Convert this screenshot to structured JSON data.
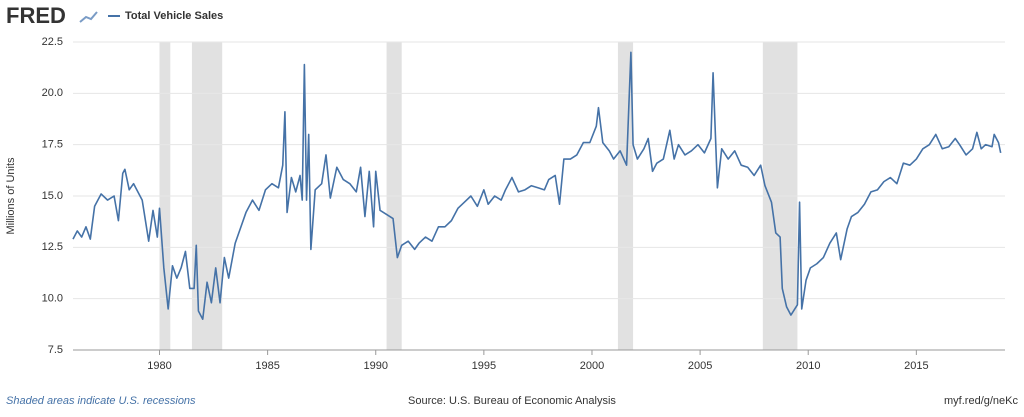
{
  "header": {
    "logo": "FRED"
  },
  "chart_data": {
    "type": "line",
    "y_label": "Millions of Units",
    "xlim": [
      1976,
      2019.1
    ],
    "xticks": [
      1980,
      1985,
      1990,
      1995,
      2000,
      2005,
      2010,
      2015
    ],
    "ylim": [
      7.5,
      22.5
    ],
    "yticks": [
      7.5,
      {
        "value": 10,
        "label": "10.0"
      },
      12.5,
      {
        "value": 15,
        "label": "15.0"
      },
      17.5,
      {
        "value": 20,
        "label": "20.0"
      },
      22.5
    ],
    "grid": true,
    "recession_color": "#e1e1e1",
    "recessions": [
      [
        1980.0,
        1980.5
      ],
      [
        1981.5,
        1982.9
      ],
      [
        1990.5,
        1991.2
      ],
      [
        2001.2,
        2001.9
      ],
      [
        2007.9,
        2009.5
      ]
    ],
    "x": [
      1976.0,
      1976.2,
      1976.4,
      1976.6,
      1976.8,
      1977.0,
      1977.3,
      1977.6,
      1977.9,
      1978.1,
      1978.3,
      1978.4,
      1978.6,
      1978.8,
      1979.0,
      1979.2,
      1979.5,
      1979.7,
      1979.9,
      1980.0,
      1980.2,
      1980.4,
      1980.6,
      1980.8,
      1981.0,
      1981.2,
      1981.4,
      1981.6,
      1981.7,
      1981.8,
      1982.0,
      1982.2,
      1982.4,
      1982.6,
      1982.8,
      1983.0,
      1983.2,
      1983.5,
      1983.8,
      1984.0,
      1984.3,
      1984.6,
      1984.9,
      1985.2,
      1985.5,
      1985.7,
      1985.8,
      1985.9,
      1986.1,
      1986.3,
      1986.5,
      1986.6,
      1986.7,
      1986.8,
      1986.9,
      1987.0,
      1987.2,
      1987.5,
      1987.7,
      1987.9,
      1988.2,
      1988.5,
      1988.8,
      1989.1,
      1989.3,
      1989.5,
      1989.7,
      1989.9,
      1990.0,
      1990.2,
      1990.5,
      1990.8,
      1991.0,
      1991.2,
      1991.5,
      1991.8,
      1992.0,
      1992.3,
      1992.6,
      1992.9,
      1993.2,
      1993.5,
      1993.8,
      1994.1,
      1994.4,
      1994.7,
      1995.0,
      1995.2,
      1995.5,
      1995.8,
      1996.0,
      1996.3,
      1996.6,
      1996.9,
      1997.2,
      1997.5,
      1997.8,
      1998.0,
      1998.3,
      1998.5,
      1998.7,
      1999.0,
      1999.3,
      1999.6,
      1999.9,
      2000.2,
      2000.3,
      2000.5,
      2000.8,
      2001.0,
      2001.3,
      2001.6,
      2001.8,
      2001.9,
      2002.1,
      2002.4,
      2002.6,
      2002.8,
      2003.0,
      2003.3,
      2003.6,
      2003.8,
      2004.0,
      2004.3,
      2004.6,
      2004.9,
      2005.2,
      2005.5,
      2005.6,
      2005.8,
      2006.0,
      2006.3,
      2006.6,
      2006.9,
      2007.2,
      2007.5,
      2007.8,
      2008.0,
      2008.3,
      2008.5,
      2008.7,
      2008.8,
      2009.0,
      2009.2,
      2009.5,
      2009.6,
      2009.7,
      2009.9,
      2010.1,
      2010.4,
      2010.7,
      2011.0,
      2011.3,
      2011.5,
      2011.8,
      2012.0,
      2012.3,
      2012.6,
      2012.9,
      2013.2,
      2013.5,
      2013.8,
      2014.1,
      2014.4,
      2014.7,
      2015.0,
      2015.3,
      2015.6,
      2015.9,
      2016.2,
      2016.5,
      2016.8,
      2017.0,
      2017.3,
      2017.6,
      2017.8,
      2018.0,
      2018.2,
      2018.5,
      2018.6,
      2018.8,
      2018.9
    ],
    "series": [
      {
        "name": "Total Vehicle Sales",
        "color": "#4572a7",
        "values": [
          12.9,
          13.3,
          13.0,
          13.5,
          12.9,
          14.5,
          15.1,
          14.8,
          15.0,
          13.8,
          16.1,
          16.3,
          15.3,
          15.6,
          15.2,
          14.8,
          12.8,
          14.3,
          13.0,
          14.4,
          11.5,
          9.5,
          11.6,
          11.0,
          11.5,
          12.3,
          10.5,
          10.5,
          12.6,
          9.4,
          9.0,
          10.8,
          9.8,
          11.5,
          9.8,
          12.0,
          11.0,
          12.7,
          13.6,
          14.2,
          14.8,
          14.3,
          15.3,
          15.6,
          15.4,
          16.5,
          19.1,
          14.2,
          15.9,
          15.2,
          16.0,
          14.8,
          21.4,
          14.8,
          18.0,
          12.4,
          15.3,
          15.6,
          17.0,
          14.9,
          16.4,
          15.8,
          15.6,
          15.2,
          16.4,
          14.0,
          16.2,
          13.5,
          16.2,
          14.3,
          14.1,
          13.9,
          12.0,
          12.6,
          12.8,
          12.4,
          12.7,
          13.0,
          12.8,
          13.5,
          13.5,
          13.8,
          14.4,
          14.7,
          15.0,
          14.5,
          15.3,
          14.6,
          15.0,
          14.8,
          15.3,
          15.9,
          15.2,
          15.3,
          15.5,
          15.4,
          15.3,
          15.8,
          16.0,
          14.6,
          16.8,
          16.8,
          17.0,
          17.6,
          17.6,
          18.4,
          19.3,
          17.6,
          17.2,
          16.8,
          17.2,
          16.5,
          22.0,
          17.5,
          16.8,
          17.3,
          17.8,
          16.2,
          16.6,
          16.8,
          18.2,
          16.8,
          17.5,
          17.0,
          17.2,
          17.5,
          17.1,
          17.8,
          21.0,
          15.4,
          17.3,
          16.8,
          17.2,
          16.5,
          16.4,
          16.0,
          16.5,
          15.5,
          14.7,
          13.2,
          13.0,
          10.5,
          9.6,
          9.2,
          9.7,
          14.7,
          9.5,
          10.9,
          11.5,
          11.7,
          12.0,
          12.7,
          13.2,
          11.9,
          13.4,
          14.0,
          14.2,
          14.6,
          15.2,
          15.3,
          15.7,
          15.9,
          15.6,
          16.6,
          16.5,
          16.8,
          17.3,
          17.5,
          18.0,
          17.3,
          17.4,
          17.8,
          17.5,
          17.0,
          17.3,
          18.1,
          17.3,
          17.5,
          17.4,
          18.0,
          17.6,
          17.1
        ]
      }
    ]
  },
  "footer": {
    "note": "Shaded areas indicate U.S. recessions",
    "source": "Source: U.S. Bureau of Economic Analysis",
    "link": "myf.red/g/neKc"
  }
}
